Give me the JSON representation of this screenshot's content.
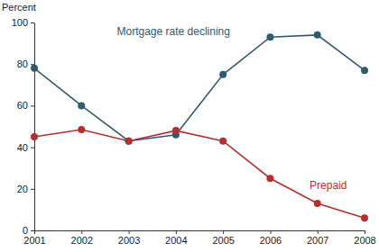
{
  "chart_data": {
    "type": "line",
    "ylabel": "Percent",
    "x": [
      2001,
      2002,
      2003,
      2004,
      2005,
      2006,
      2007,
      2008
    ],
    "series": [
      {
        "name": "Mortgage rate declining",
        "color": "#2f5b6f",
        "marker": "circle",
        "line_style": "solid",
        "values": [
          78,
          60,
          43,
          46,
          75,
          93,
          94,
          77
        ]
      },
      {
        "name": "Prepaid",
        "color": "#b3302e",
        "marker": "circle",
        "line_style": "solid",
        "values": [
          45,
          48.5,
          43,
          48,
          43,
          25,
          13,
          6
        ]
      }
    ],
    "xlim": [
      2001,
      2008
    ],
    "xticks": [
      2001,
      2002,
      2003,
      2004,
      2005,
      2006,
      2007,
      2008
    ],
    "ylim": [
      0,
      100
    ],
    "yticks": [
      0,
      20,
      40,
      60,
      80,
      100
    ],
    "grid": false
  }
}
